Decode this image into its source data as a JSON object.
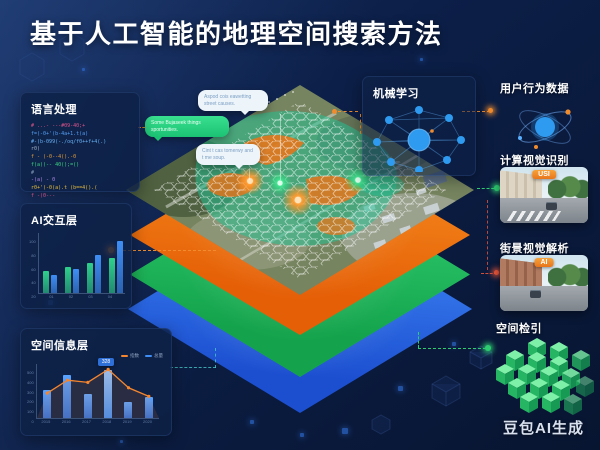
{
  "title": "基于人工智能的地理空间搜索方法",
  "watermark": "豆包AI生成",
  "colors": {
    "accent_orange": "#f08c2e",
    "accent_green": "#2ecc71",
    "accent_blue": "#3f8ef5",
    "accent_red": "#e8553a",
    "layer_orange": "#f07a14",
    "layer_green": "#22b45c",
    "layer_blue": "#2a6de0"
  },
  "left_panels": {
    "nlp": {
      "label": "语言处理",
      "code_lines": [
        {
          "t": "# ...- ---#09-40;+",
          "c": "#e8568f"
        },
        {
          "t": "f=(-0+'(b-4a+1.t(a)",
          "c": "#58a6ff"
        },
        {
          "t": "  #-(b-099(-./oq/f0++f+4(.)",
          "c": "#6cb8ff"
        },
        {
          "t": "r0)",
          "c": "#aab8cc"
        },
        {
          "t": "f - (-0--4().-0",
          "c": "#f0a43a"
        },
        {
          "t": "  f(a)(-- 40();=()",
          "c": "#3ddc84"
        },
        {
          "t": "#",
          "c": "#8aa0be"
        },
        {
          "t": "-(a) - 0",
          "c": "#b98cf0"
        },
        {
          "t": "  r0+'(-0(a).t (b==4().(",
          "c": "#f0c23a"
        },
        {
          "t": "f  -(0---",
          "c": "#e8568f"
        }
      ]
    },
    "interaction": {
      "label": "AI交互层",
      "y_ticks": [
        "100",
        "80",
        "60",
        "40",
        "20"
      ],
      "x_labels": [
        "01",
        "02",
        "03",
        "04"
      ],
      "series": [
        {
          "name": "green",
          "color": "#2fd08c",
          "values": [
            36,
            44,
            50,
            58
          ]
        },
        {
          "name": "blue",
          "color": "#3f8ef5",
          "values": [
            30,
            40,
            64,
            86
          ]
        }
      ]
    },
    "spatial": {
      "label": "空间信息层",
      "y_ticks": [
        "500",
        "400",
        "300",
        "200",
        "100",
        "0"
      ],
      "x_labels": [
        "2015",
        "2016",
        "2017",
        "2018",
        "2019",
        "2020"
      ],
      "bars": [
        52,
        80,
        45,
        88,
        30,
        38
      ],
      "line": [
        46,
        70,
        66,
        90,
        56,
        40
      ],
      "tooltip": "328",
      "legend": [
        {
          "color": "#f5862e",
          "label": "指数"
        },
        {
          "color": "#3f8ef5",
          "label": "总量"
        }
      ]
    }
  },
  "bubbles": [
    {
      "style": "light",
      "text": "Aspod cois eawetting street causes."
    },
    {
      "style": "green",
      "text": "Some Bujaseek things sportunities."
    },
    {
      "style": "light",
      "text": "Cint t cas tomerwy and t me soup."
    }
  ],
  "right_panels": {
    "ml": {
      "label": "机械学习"
    },
    "behavior": {
      "label": "用户行为数据"
    },
    "cv": {
      "label": "计算视觉识别",
      "badge": "USI"
    },
    "street": {
      "label": "街景视觉解析",
      "badge": "AI"
    },
    "index": {
      "label": "空间检引"
    }
  }
}
